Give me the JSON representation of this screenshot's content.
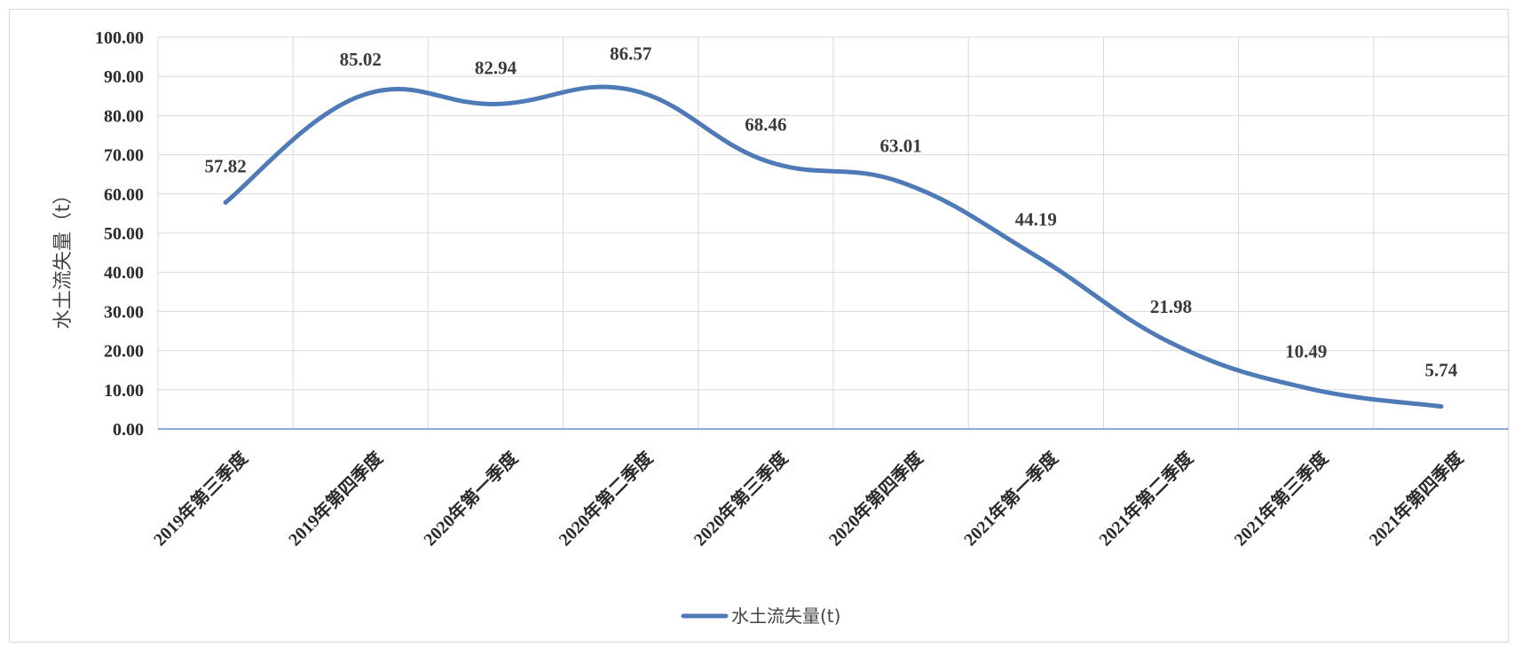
{
  "chart_data": {
    "type": "line",
    "title": "",
    "xlabel": "",
    "ylabel": "水土流失量（t）",
    "ylim": [
      0,
      100
    ],
    "ytick_step": 10,
    "ytick_labels": [
      "0.00",
      "10.00",
      "20.00",
      "30.00",
      "40.00",
      "50.00",
      "60.00",
      "70.00",
      "80.00",
      "90.00",
      "100.00"
    ],
    "grid": true,
    "legend_position": "bottom",
    "categories": [
      "2019年第三季度",
      "2019年第四季度",
      "2020年第一季度",
      "2020年第二季度",
      "2020年第三季度",
      "2020年第四季度",
      "2021年第一季度",
      "2021年第二季度",
      "2021年第三季度",
      "2021年第四季度"
    ],
    "series": [
      {
        "name": "水土流失量(t)",
        "color": "#4f7ab8",
        "values": [
          57.82,
          85.02,
          82.94,
          86.57,
          68.46,
          63.01,
          44.19,
          21.98,
          10.49,
          5.74
        ],
        "data_labels": [
          "57.82",
          "85.02",
          "82.94",
          "86.57",
          "68.46",
          "63.01",
          "44.19",
          "21.98",
          "10.49",
          "5.74"
        ]
      }
    ]
  }
}
